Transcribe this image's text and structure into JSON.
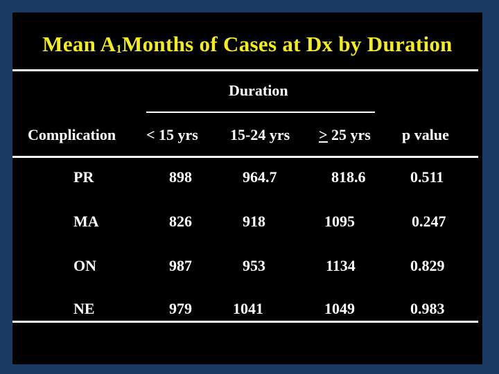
{
  "title": {
    "prefix": "Mean A",
    "subscript": "1",
    "suffix": "Months of Cases at Dx by Duration"
  },
  "table": {
    "group_header": "Duration",
    "headers": {
      "complication": "Complication",
      "lt15": "< 15 yrs",
      "mid": "15-24 yrs",
      "ge25_symbol": ">",
      "ge25_text": " 25 yrs",
      "pvalue": "p value"
    },
    "rows": [
      {
        "label": "PR",
        "lt15": "898",
        "mid": "964.7",
        "ge25": "818.6",
        "p": "0.511"
      },
      {
        "label": "MA",
        "lt15": "826",
        "mid": "918",
        "ge25": "1095",
        "p": "0.247"
      },
      {
        "label": "ON",
        "lt15": "987",
        "mid": "953",
        "ge25": "1134",
        "p": "0.829"
      },
      {
        "label": "NE",
        "lt15": "979",
        "mid": "1041",
        "ge25": "1049",
        "p": "0.983"
      }
    ]
  },
  "colors": {
    "frame": "#1a3a63",
    "slide_background": "#000000",
    "title": "#f2ea2a",
    "text": "#ffffff"
  }
}
